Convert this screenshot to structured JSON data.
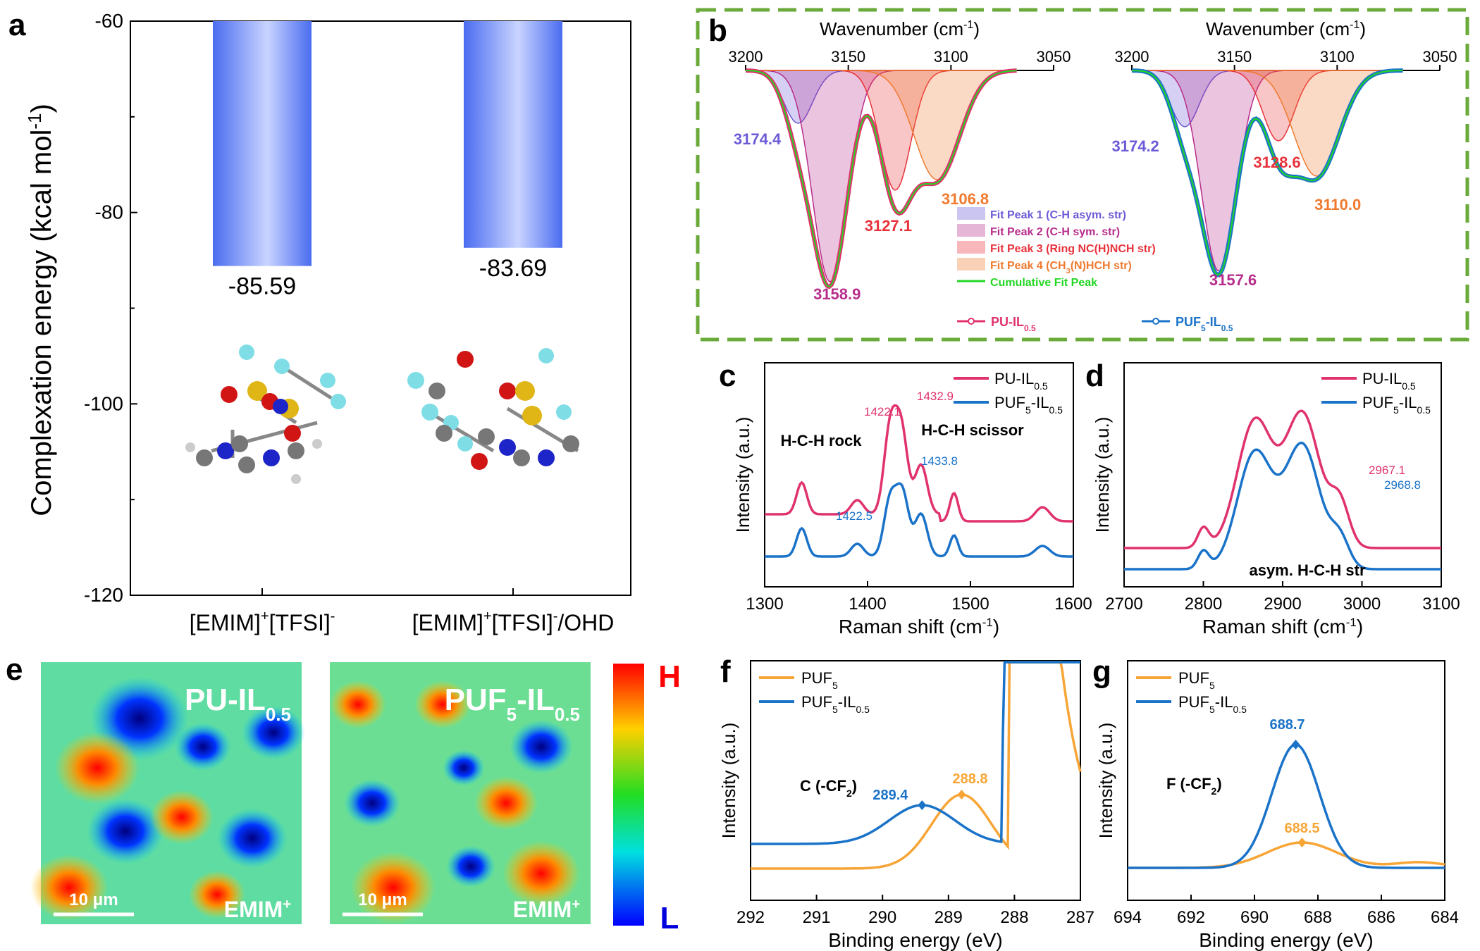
{
  "panel_labels": [
    "a",
    "b",
    "c",
    "d",
    "e",
    "f",
    "g"
  ],
  "colors": {
    "bar_dark": "#4a6cf0",
    "bar_light": "#c7d3ff",
    "pu": "#e0326d",
    "puf": "#1a73c9",
    "puf5_xps": "#f7a536",
    "fit1": "#6b5bd6",
    "fit2": "#b72d8c",
    "fit3": "#e8323b",
    "fit4": "#ef7a2e",
    "cumulative": "#22d622",
    "frame_b": "#6aaa3a"
  },
  "chart_data": [
    {
      "id": "a",
      "type": "bar",
      "title": "",
      "ylabel": "Complexation energy (kcal mol",
      "ylabel_sup": "-1",
      "ylabel_end": ")",
      "ylim": [
        -120,
        -60
      ],
      "yticks": [
        -120,
        -100,
        -80,
        -60
      ],
      "categories": [
        {
          "main": "[EMIM]",
          "sup1": "+",
          "mid": "[TFSI]",
          "sup2": "-",
          "tail": ""
        },
        {
          "main": "[EMIM]",
          "sup1": "+",
          "mid": "[TFSI]",
          "sup2": "-",
          "tail": "/OHD"
        }
      ],
      "values": [
        -85.59,
        -83.69
      ],
      "value_labels": [
        "-85.59",
        "-83.69"
      ]
    },
    {
      "id": "b",
      "type": "area",
      "xlabel": "Wavenumber (cm",
      "xlabel_sup": "-1",
      "xlabel_end": ")",
      "xlim": [
        3200,
        3050
      ],
      "xticks": [
        "3200",
        "3150",
        "3100",
        "3050"
      ],
      "axis_position": "top",
      "legend": [
        {
          "name": "Fit Peak 1 (C-H asym. str)",
          "color_key": "fit1"
        },
        {
          "name": "Fit Peak 2 (C-H sym. str)",
          "color_key": "fit2"
        },
        {
          "name": "Fit Peak 3 (Ring NC(H)NCH str)",
          "color_key": "fit3"
        },
        {
          "name_pre": "Fit Peak 4 (CH",
          "name_sub": "3",
          "name_post": "(N)HCH str)",
          "color_key": "fit4"
        },
        {
          "name": "Cumulative Fit Peak",
          "color_key": "cumulative",
          "is_line": true
        }
      ],
      "sample_legend": [
        {
          "pre": "PU-IL",
          "sub": "0.5",
          "color_key": "pu"
        },
        {
          "pre": "PUF",
          "sub": "5",
          "mid": "-IL",
          "sub2": "0.5",
          "color_key": "puf"
        }
      ],
      "subplots": [
        {
          "name": "PU-IL0.5",
          "peaks": [
            {
              "center": 3174.4,
              "label": "3174.4",
              "color_key": "fit1"
            },
            {
              "center": 3158.9,
              "label": "3158.9",
              "color_key": "fit2"
            },
            {
              "center": 3127.1,
              "label": "3127.1",
              "color_key": "fit3"
            },
            {
              "center": 3106.8,
              "label": "3106.8",
              "color_key": "fit4"
            }
          ]
        },
        {
          "name": "PUF5-IL0.5",
          "peaks": [
            {
              "center": 3174.2,
              "label": "3174.2",
              "color_key": "fit1"
            },
            {
              "center": 3157.6,
              "label": "3157.6",
              "color_key": "fit2"
            },
            {
              "center": 3128.6,
              "label": "3128.6",
              "color_key": "fit3"
            },
            {
              "center": 3110.0,
              "label": "3110.0",
              "color_key": "fit4"
            }
          ]
        }
      ]
    },
    {
      "id": "c",
      "type": "line",
      "xlabel": "Raman shift (cm",
      "xlabel_sup": "-1",
      "xlabel_end": ")",
      "ylabel": "Intensity (a.u.)",
      "xlim": [
        1300,
        1600
      ],
      "xticks": [
        "1300",
        "1400",
        "1500",
        "1600"
      ],
      "legend_placement": "top-right",
      "series": [
        {
          "pre": "PU-IL",
          "sub": "0.5",
          "color_key": "pu"
        },
        {
          "pre": "PUF",
          "sub": "5",
          "mid": "-IL",
          "sub2": "0.5",
          "color_key": "puf"
        }
      ],
      "annotations": [
        {
          "text": "1422.1",
          "color_key": "pu"
        },
        {
          "text": "1432.9",
          "color_key": "pu"
        },
        {
          "text": "1433.8",
          "color_key": "puf"
        },
        {
          "text": "1422.5",
          "color_key": "puf"
        },
        {
          "text": "H-C-H rock"
        },
        {
          "text": "H-C-H scissor"
        }
      ]
    },
    {
      "id": "d",
      "type": "line",
      "xlabel": "Raman shift (cm",
      "xlabel_sup": "-1",
      "xlabel_end": ")",
      "ylabel": "Intensity (a.u.)",
      "xlim": [
        2700,
        3100
      ],
      "xticks": [
        "2700",
        "2800",
        "2900",
        "3000",
        "3100"
      ],
      "legend_placement": "top-right",
      "series": [
        {
          "pre": "PU-IL",
          "sub": "0.5",
          "color_key": "pu"
        },
        {
          "pre": "PUF",
          "sub": "5",
          "mid": "-IL",
          "sub2": "0.5",
          "color_key": "puf"
        }
      ],
      "annotations": [
        {
          "text": "2967.1",
          "color_key": "pu"
        },
        {
          "text": "2968.8",
          "color_key": "puf"
        },
        {
          "text": "asym. H-C-H str"
        }
      ]
    },
    {
      "id": "f",
      "type": "line",
      "xlabel": "Binding energy (eV)",
      "ylabel": "Intensity (a.u.)",
      "xlim": [
        292,
        287
      ],
      "xticks": [
        "292",
        "291",
        "290",
        "289",
        "288",
        "287"
      ],
      "legend_placement": "top-left",
      "series": [
        {
          "pre": "PUF",
          "sub": "5",
          "color_key": "puf5_xps"
        },
        {
          "pre": "PUF",
          "sub": "5",
          "mid": "-IL",
          "sub2": "0.5",
          "color_key": "puf"
        }
      ],
      "peaks": [
        {
          "series": 0,
          "x": 288.8,
          "label": "288.8"
        },
        {
          "series": 1,
          "x": 289.4,
          "label": "289.4"
        }
      ],
      "annotation_pre": "C (-CF",
      "annotation_sub": "2",
      "annotation_post": ")"
    },
    {
      "id": "g",
      "type": "line",
      "xlabel": "Binding energy (eV)",
      "ylabel": "Intensity (a.u.)",
      "xlim": [
        694,
        684
      ],
      "xticks": [
        "694",
        "692",
        "690",
        "688",
        "686",
        "684"
      ],
      "legend_placement": "top-left",
      "series": [
        {
          "pre": "PUF",
          "sub": "5",
          "color_key": "puf5_xps"
        },
        {
          "pre": "PUF",
          "sub": "5",
          "mid": "-IL",
          "sub2": "0.5",
          "color_key": "puf"
        }
      ],
      "peaks": [
        {
          "series": 1,
          "x": 688.7,
          "label": "688.7"
        },
        {
          "series": 0,
          "x": 688.5,
          "label": "688.5"
        }
      ],
      "annotation_pre": "F (-CF",
      "annotation_sub": "2",
      "annotation_post": ")"
    }
  ],
  "maps": {
    "tiles": [
      {
        "title_pre": "PU-IL",
        "title_sub": "0.5",
        "scale": "10 μm",
        "ion": "EMIM",
        "ion_sup": "+"
      },
      {
        "title_pre": "PUF",
        "title_sub": "5",
        "title_mid": "-IL",
        "title_sub2": "0.5",
        "scale": "10 μm",
        "ion": "EMIM",
        "ion_sup": "+"
      }
    ],
    "colorbar_high": "H",
    "colorbar_low": "L"
  }
}
